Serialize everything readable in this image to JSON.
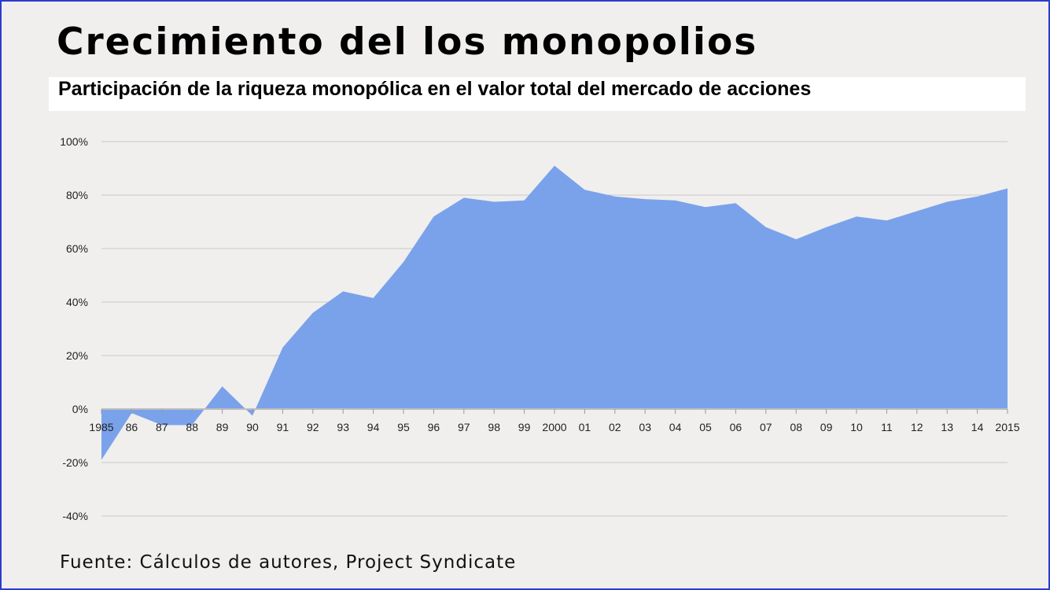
{
  "title": "Crecimiento del los monopolios",
  "subtitle": "Participación de la riqueza monopólica en el valor total del mercado de acciones",
  "source": "Fuente: Cálculos de autores, Project Syndicate",
  "colors": {
    "area": "#7aa2eb",
    "grid": "#c8c8c8",
    "frame": "#2b3ccf",
    "background": "#f0efee"
  },
  "chart_data": {
    "type": "area",
    "title": "Crecimiento del los monopolios",
    "subtitle": "Participación de la riqueza monopólica en el valor total del mercado de acciones",
    "xlabel": "",
    "ylabel": "",
    "ylim": [
      -40,
      100
    ],
    "yticks": [
      "100%",
      "80%",
      "60%",
      "40%",
      "20%",
      "0%",
      "-20%",
      "-40%"
    ],
    "ytick_values": [
      100,
      80,
      60,
      40,
      20,
      0,
      -20,
      -40
    ],
    "grid": true,
    "categories": [
      "1985",
      "86",
      "87",
      "88",
      "89",
      "90",
      "91",
      "92",
      "93",
      "94",
      "95",
      "96",
      "97",
      "98",
      "99",
      "2000",
      "01",
      "02",
      "03",
      "04",
      "05",
      "06",
      "07",
      "08",
      "09",
      "10",
      "11",
      "12",
      "13",
      "14",
      "2015"
    ],
    "values": [
      -19,
      -1.5,
      -6,
      -6,
      8.5,
      -2.5,
      23,
      36,
      44,
      41.5,
      55,
      72,
      79,
      77.5,
      78,
      91,
      82,
      79.5,
      78.5,
      78,
      75.5,
      77,
      68,
      63.5,
      68,
      72,
      70.5,
      74,
      77.5,
      79.5,
      82.5
    ]
  }
}
